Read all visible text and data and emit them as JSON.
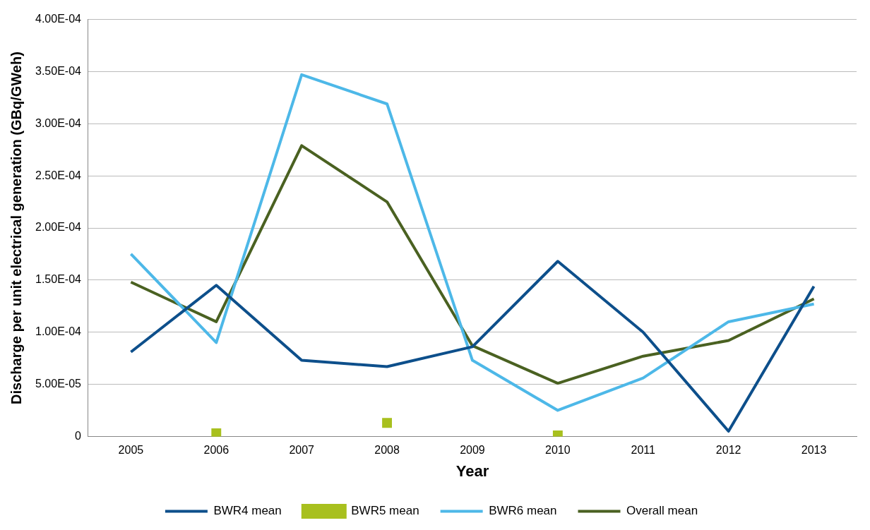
{
  "chart_data": {
    "type": "line",
    "xlabel": "Year",
    "ylabel": "Discharge per unit electrical generation (GBq/GWeh)",
    "categories": [
      "2005",
      "2006",
      "2007",
      "2008",
      "2009",
      "2010",
      "2011",
      "2012",
      "2013"
    ],
    "series": [
      {
        "name": "BWR4 mean",
        "color": "#0d4f8b",
        "marker": "none",
        "values": [
          8.1e-05,
          0.000145,
          7.3e-05,
          6.7e-05,
          8.6e-05,
          0.000168,
          0.0001,
          5e-06,
          0.000144
        ]
      },
      {
        "name": "BWR5 mean",
        "type": "scatter",
        "color": "#a8c01e",
        "marker": "square",
        "values": [
          null,
          3e-06,
          null,
          1.3e-05,
          null,
          1e-06,
          null,
          null,
          null
        ]
      },
      {
        "name": "BWR6 mean",
        "color": "#4db8e8",
        "marker": "none",
        "values": [
          0.000175,
          9e-05,
          0.000347,
          0.000319,
          7.3e-05,
          2.5e-05,
          5.6e-05,
          0.00011,
          0.000127
        ]
      },
      {
        "name": "Overall mean",
        "color": "#4a6121",
        "marker": "none",
        "values": [
          0.000148,
          0.00011,
          0.000279,
          0.000225,
          8.7e-05,
          5.1e-05,
          7.7e-05,
          9.2e-05,
          0.000132
        ]
      }
    ],
    "ylim": [
      0,
      0.0004
    ],
    "yticks": [
      0,
      {
        "value": 5e-05,
        "label": "5.00E-05"
      },
      {
        "value": 0.0001,
        "label": "1.00E-04"
      },
      {
        "value": 0.00015,
        "label": "1.50E-04"
      },
      {
        "value": 0.0002,
        "label": "2.00E-04"
      },
      {
        "value": 0.00025,
        "label": "2.50E-04"
      },
      {
        "value": 0.0003,
        "label": "3.00E-04"
      },
      {
        "value": 0.00035,
        "label": "3.50E-04"
      },
      {
        "value": 0.0004,
        "label": "4.00E-04"
      }
    ],
    "grid": "y",
    "legend": "bottom",
    "line_style": "solid"
  }
}
